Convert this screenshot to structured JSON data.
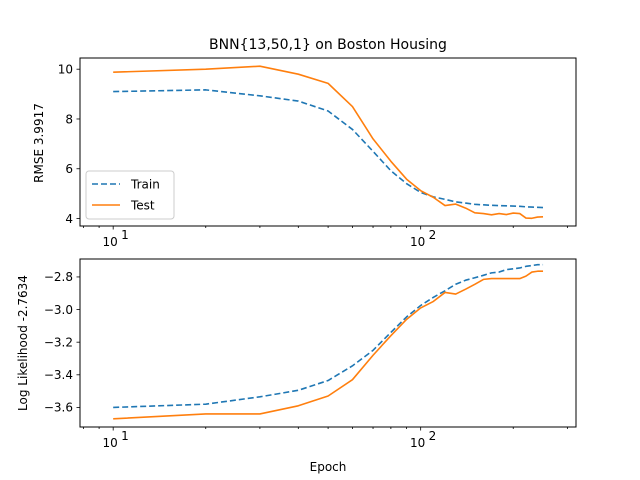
{
  "chart_data": [
    {
      "type": "line",
      "title": "BNN{13,50,1} on Boston Housing",
      "xlabel": "",
      "ylabel": "RMSE 3.9917",
      "xscale": "log",
      "xlim": [
        7.8,
        320
      ],
      "ylim": [
        3.7,
        10.45
      ],
      "yticks": [
        4,
        6,
        8,
        10
      ],
      "ytick_labels": [
        "4",
        "6",
        "8",
        "10"
      ],
      "xticks": [
        10,
        100
      ],
      "legend": {
        "position": "lower-left",
        "entries": [
          "Train",
          "Test"
        ]
      },
      "series": [
        {
          "name": "Train",
          "color": "#1f77b4",
          "dash": "dashed",
          "x": [
            10,
            20,
            30,
            40,
            50,
            60,
            70,
            80,
            90,
            100,
            110,
            120,
            130,
            140,
            150,
            160,
            170,
            180,
            190,
            200,
            210,
            220,
            230,
            240,
            250
          ],
          "y": [
            9.1,
            9.17,
            8.93,
            8.72,
            8.32,
            7.58,
            6.7,
            5.92,
            5.4,
            5.05,
            4.87,
            4.77,
            4.67,
            4.62,
            4.57,
            4.55,
            4.53,
            4.52,
            4.51,
            4.5,
            4.49,
            4.47,
            4.46,
            4.45,
            4.44
          ]
        },
        {
          "name": "Test",
          "color": "#ff7f0e",
          "dash": "solid",
          "x": [
            10,
            20,
            30,
            40,
            50,
            60,
            70,
            80,
            90,
            100,
            110,
            120,
            130,
            140,
            150,
            160,
            170,
            180,
            190,
            200,
            210,
            220,
            230,
            240,
            250
          ],
          "y": [
            9.88,
            10.0,
            10.12,
            9.8,
            9.43,
            8.5,
            7.2,
            6.3,
            5.58,
            5.12,
            4.85,
            4.52,
            4.58,
            4.42,
            4.23,
            4.2,
            4.15,
            4.2,
            4.16,
            4.22,
            4.2,
            4.02,
            4.01,
            4.06,
            4.07
          ]
        }
      ]
    },
    {
      "type": "line",
      "title": "",
      "xlabel": "Epoch",
      "ylabel": "Log Likelihood -2.7634",
      "xscale": "log",
      "xlim": [
        7.8,
        320
      ],
      "ylim": [
        -3.72,
        -2.69
      ],
      "yticks": [
        -3.6,
        -3.4,
        -3.2,
        -3.0,
        -2.8
      ],
      "ytick_labels": [
        "−3.6",
        "−3.4",
        "−3.2",
        "−3.0",
        "−2.8"
      ],
      "xticks": [
        10,
        100
      ],
      "series": [
        {
          "name": "Train",
          "color": "#1f77b4",
          "dash": "dashed",
          "x": [
            10,
            20,
            30,
            40,
            50,
            60,
            70,
            80,
            90,
            100,
            110,
            120,
            130,
            140,
            150,
            160,
            170,
            180,
            190,
            200,
            210,
            220,
            230,
            240,
            250
          ],
          "y": [
            -3.6,
            -3.58,
            -3.535,
            -3.495,
            -3.435,
            -3.345,
            -3.25,
            -3.14,
            -3.045,
            -2.975,
            -2.925,
            -2.885,
            -2.845,
            -2.82,
            -2.805,
            -2.79,
            -2.775,
            -2.77,
            -2.755,
            -2.75,
            -2.745,
            -2.735,
            -2.73,
            -2.725,
            -2.725
          ]
        },
        {
          "name": "Test",
          "color": "#ff7f0e",
          "dash": "solid",
          "x": [
            10,
            20,
            30,
            40,
            50,
            60,
            70,
            80,
            90,
            100,
            110,
            120,
            130,
            140,
            150,
            160,
            170,
            180,
            190,
            200,
            210,
            220,
            230,
            240,
            250
          ],
          "y": [
            -3.67,
            -3.64,
            -3.64,
            -3.59,
            -3.53,
            -3.43,
            -3.28,
            -3.16,
            -3.06,
            -2.99,
            -2.95,
            -2.895,
            -2.905,
            -2.875,
            -2.845,
            -2.815,
            -2.81,
            -2.81,
            -2.81,
            -2.81,
            -2.81,
            -2.795,
            -2.77,
            -2.765,
            -2.765
          ]
        }
      ]
    }
  ]
}
